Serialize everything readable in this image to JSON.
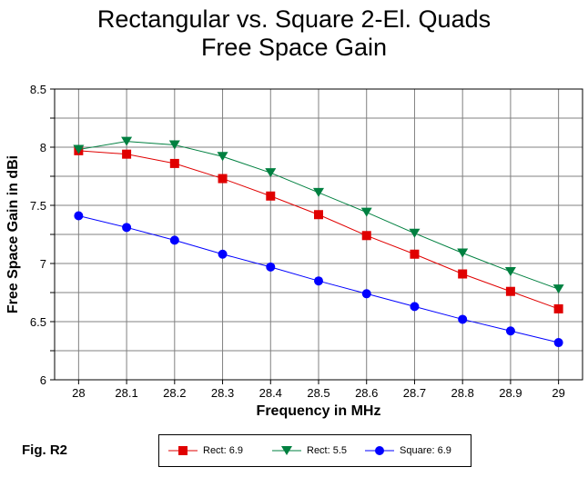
{
  "chart_data": {
    "type": "line",
    "title": [
      "Rectangular vs. Square 2-El. Quads",
      "Free Space Gain"
    ],
    "xlabel": "Frequency in MHz",
    "ylabel": "Free Space Gain in dBi",
    "x": [
      28,
      28.1,
      28.2,
      28.3,
      28.4,
      28.5,
      28.6,
      28.7,
      28.8,
      28.9,
      29
    ],
    "x_ticks": [
      "28",
      "28.1",
      "28.2",
      "28.3",
      "28.4",
      "28.5",
      "28.6",
      "28.7",
      "28.8",
      "28.9",
      "29"
    ],
    "y_ticks": [
      "8.5",
      "8",
      "7.5",
      "7",
      "6.5",
      "6"
    ],
    "xlim": [
      27.95,
      29.05
    ],
    "ylim": [
      6,
      8.5
    ],
    "grid": true,
    "legend_position": "bottom",
    "series": [
      {
        "name": "Rect: 6.9",
        "color": "#e00000",
        "marker": "square",
        "values": [
          7.97,
          7.94,
          7.86,
          7.73,
          7.58,
          7.42,
          7.24,
          7.08,
          6.91,
          6.76,
          6.61
        ]
      },
      {
        "name": "Rect: 5.5",
        "color": "#008040",
        "marker": "triangle-down",
        "values": [
          7.98,
          8.05,
          8.02,
          7.92,
          7.78,
          7.61,
          7.44,
          7.26,
          7.09,
          6.93,
          6.78
        ]
      },
      {
        "name": "Square: 6.9",
        "color": "#0000ff",
        "marker": "circle",
        "values": [
          7.41,
          7.31,
          7.2,
          7.08,
          6.97,
          6.85,
          6.74,
          6.63,
          6.52,
          6.42,
          6.32
        ]
      }
    ]
  },
  "figure_label": "Fig. R2"
}
